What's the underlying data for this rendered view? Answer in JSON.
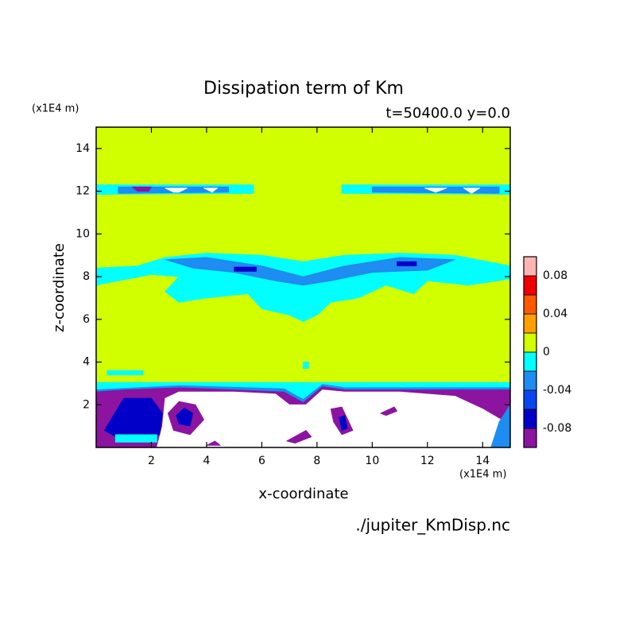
{
  "chart_data": {
    "type": "contour",
    "title": "Dissipation term of Km",
    "subtitle": "t=50400.0 y=0.0",
    "x_label": "x-coordinate",
    "y_label": "z-coordinate",
    "x_unit": "(x1E4 m)",
    "y_unit": "(x1E4 m)",
    "source": "./jupiter_KmDisp.nc",
    "xlim": [
      0,
      15
    ],
    "ylim": [
      0,
      15
    ],
    "xticks": [
      2,
      4,
      6,
      8,
      10,
      12,
      14
    ],
    "yticks": [
      2,
      4,
      6,
      8,
      10,
      12,
      14
    ],
    "levels": [
      -0.1,
      -0.08,
      -0.06,
      -0.04,
      -0.02,
      0,
      0.02,
      0.04,
      0.06,
      0.08,
      0.1
    ],
    "colors": [
      "#8c14a0",
      "#0000c8",
      "#0a46f0",
      "#1e8cf0",
      "#00ffff",
      "#d2ff00",
      "#ffa000",
      "#ff5a00",
      "#f00000",
      "#ffb4b4"
    ],
    "below_color": "#ffffff",
    "colorbar_ticks": [
      -0.08,
      -0.04,
      0,
      0.04,
      0.08
    ],
    "regions": [
      {
        "min": 0,
        "max": 0.02,
        "points": [
          [
            0,
            0
          ],
          [
            15,
            0
          ],
          [
            15,
            15
          ],
          [
            0,
            15
          ]
        ]
      },
      {
        "min": -0.02,
        "max": 0,
        "points": [
          [
            0,
            11.85
          ],
          [
            5.7,
            11.9
          ],
          [
            5.7,
            12.3
          ],
          [
            0,
            12.3
          ]
        ]
      },
      {
        "min": -0.02,
        "max": 0,
        "points": [
          [
            8.9,
            11.9
          ],
          [
            15,
            11.85
          ],
          [
            15,
            12.3
          ],
          [
            8.9,
            12.3
          ]
        ]
      },
      {
        "min": -0.04,
        "max": -0.02,
        "points": [
          [
            0.8,
            11.9
          ],
          [
            4.8,
            11.95
          ],
          [
            4.8,
            12.2
          ],
          [
            0.8,
            12.2
          ]
        ]
      },
      {
        "min": -0.04,
        "max": -0.02,
        "points": [
          [
            10,
            11.95
          ],
          [
            14.6,
            11.9
          ],
          [
            14.6,
            12.2
          ],
          [
            10,
            12.2
          ]
        ]
      },
      {
        "min": -0.1,
        "max": -0.08,
        "points": [
          [
            1.3,
            12.2
          ],
          [
            2,
            12.2
          ],
          [
            1.9,
            12.0
          ],
          [
            1.5,
            12.0
          ]
        ]
      },
      {
        "max": -0.1,
        "points": [
          [
            2.5,
            12.15
          ],
          [
            3.3,
            12.15
          ],
          [
            3,
            11.95
          ],
          [
            2.8,
            11.95
          ]
        ]
      },
      {
        "max": -0.1,
        "points": [
          [
            3.9,
            12.15
          ],
          [
            4.4,
            12.15
          ],
          [
            4.2,
            11.95
          ]
        ]
      },
      {
        "max": -0.1,
        "points": [
          [
            11.9,
            12.15
          ],
          [
            12.7,
            12.15
          ],
          [
            12.3,
            11.95
          ]
        ]
      },
      {
        "max": -0.1,
        "points": [
          [
            13.3,
            12.15
          ],
          [
            13.9,
            12.15
          ],
          [
            13.6,
            11.9
          ]
        ]
      },
      {
        "min": -0.02,
        "max": 0,
        "points": [
          [
            0,
            8.4
          ],
          [
            1.5,
            8.5
          ],
          [
            2.5,
            8.9
          ],
          [
            4,
            9.1
          ],
          [
            6,
            9
          ],
          [
            7.5,
            8.7
          ],
          [
            9,
            9
          ],
          [
            11,
            9.1
          ],
          [
            13,
            9
          ],
          [
            15,
            8.5
          ],
          [
            15,
            7.9
          ],
          [
            13.5,
            7.6
          ],
          [
            12,
            7.8
          ],
          [
            11.5,
            7.2
          ],
          [
            10.5,
            7.6
          ],
          [
            9.5,
            7.0
          ],
          [
            8.5,
            6.8
          ],
          [
            8,
            6.2
          ],
          [
            7.5,
            5.9
          ],
          [
            7,
            6.2
          ],
          [
            6,
            6.5
          ],
          [
            5.5,
            7.2
          ],
          [
            4,
            7.0
          ],
          [
            3,
            6.8
          ],
          [
            2.5,
            7.3
          ],
          [
            3,
            8
          ],
          [
            2,
            8.1
          ],
          [
            0,
            7.6
          ]
        ]
      },
      {
        "min": -0.04,
        "max": -0.02,
        "points": [
          [
            2.5,
            8.8
          ],
          [
            4,
            8.9
          ],
          [
            6,
            8.5
          ],
          [
            7.5,
            8.0
          ],
          [
            9,
            8.5
          ],
          [
            11,
            8.9
          ],
          [
            13,
            8.8
          ],
          [
            12,
            8.3
          ],
          [
            10,
            8.2
          ],
          [
            8.5,
            7.8
          ],
          [
            7.5,
            7.6
          ],
          [
            6.5,
            7.8
          ],
          [
            5,
            8.2
          ],
          [
            3.5,
            8.4
          ]
        ]
      },
      {
        "min": -0.08,
        "max": -0.06,
        "points": [
          [
            5.0,
            8.45
          ],
          [
            5.8,
            8.45
          ],
          [
            5.8,
            8.25
          ],
          [
            5.0,
            8.25
          ]
        ]
      },
      {
        "min": -0.08,
        "max": -0.06,
        "points": [
          [
            10.9,
            8.7
          ],
          [
            11.6,
            8.7
          ],
          [
            11.6,
            8.5
          ],
          [
            10.9,
            8.5
          ]
        ]
      },
      {
        "min": -0.02,
        "max": 0,
        "points": [
          [
            0.4,
            3.4
          ],
          [
            1.7,
            3.4
          ],
          [
            1.7,
            3.6
          ],
          [
            0.4,
            3.6
          ]
        ]
      },
      {
        "min": -0.02,
        "max": 0,
        "points": [
          [
            7.5,
            3.7
          ],
          [
            7.7,
            3.7
          ],
          [
            7.7,
            4.0
          ],
          [
            7.5,
            4.0
          ]
        ]
      },
      {
        "min": -0.02,
        "max": 0,
        "points": [
          [
            0,
            0
          ],
          [
            15,
            0
          ],
          [
            15,
            3.05
          ],
          [
            0,
            3.05
          ]
        ]
      },
      {
        "min": -0.04,
        "max": -0.02,
        "points": [
          [
            0,
            0
          ],
          [
            15,
            0
          ],
          [
            15,
            2.8
          ],
          [
            9,
            2.8
          ],
          [
            8.2,
            2.95
          ],
          [
            7.5,
            2.25
          ],
          [
            6.8,
            2.75
          ],
          [
            3,
            2.9
          ],
          [
            0,
            2.7
          ]
        ]
      },
      {
        "min": -0.1,
        "max": -0.08,
        "points": [
          [
            0,
            0
          ],
          [
            15,
            0
          ],
          [
            15,
            2.7
          ],
          [
            9,
            2.7
          ],
          [
            8.2,
            2.85
          ],
          [
            7.5,
            2.1
          ],
          [
            6.8,
            2.6
          ],
          [
            5,
            2.7
          ],
          [
            3,
            2.8
          ],
          [
            1,
            2.7
          ],
          [
            0,
            2.6
          ]
        ]
      },
      {
        "max": -0.1,
        "points": [
          [
            2.2,
            0
          ],
          [
            15,
            0
          ],
          [
            14.8,
            1.2
          ],
          [
            14,
            1.8
          ],
          [
            13,
            2.4
          ],
          [
            11,
            2.6
          ],
          [
            9,
            2.6
          ],
          [
            8.2,
            2.7
          ],
          [
            7.6,
            2.0
          ],
          [
            7,
            2.0
          ],
          [
            6.5,
            2.5
          ],
          [
            5,
            2.6
          ],
          [
            4,
            2.6
          ],
          [
            3,
            2.6
          ],
          [
            2.5,
            2.3
          ],
          [
            2.4,
            1.0
          ]
        ]
      },
      {
        "min": -0.08,
        "max": -0.06,
        "points": [
          [
            0.3,
            0.8
          ],
          [
            1,
            2.3
          ],
          [
            2,
            2.3
          ],
          [
            2.4,
            1.6
          ],
          [
            2.3,
            0.6
          ],
          [
            1.5,
            0.6
          ],
          [
            1,
            0.3
          ]
        ]
      },
      {
        "min": -0.02,
        "max": 0,
        "points": [
          [
            0.7,
            0.25
          ],
          [
            2.2,
            0.25
          ],
          [
            2.2,
            0.6
          ],
          [
            0.7,
            0.6
          ]
        ]
      },
      {
        "min": -0.04,
        "max": -0.02,
        "points": [
          [
            14.3,
            0
          ],
          [
            15,
            0
          ],
          [
            15,
            2.0
          ],
          [
            14.6,
            1.2
          ]
        ]
      },
      {
        "min": -0.1,
        "max": -0.08,
        "points": [
          [
            2.6,
            1.6
          ],
          [
            3.0,
            2.15
          ],
          [
            3.6,
            2.0
          ],
          [
            3.9,
            1.3
          ],
          [
            3.4,
            0.6
          ],
          [
            2.8,
            0.8
          ]
        ]
      },
      {
        "min": -0.08,
        "max": -0.06,
        "points": [
          [
            2.9,
            1.5
          ],
          [
            3.2,
            1.85
          ],
          [
            3.5,
            1.6
          ],
          [
            3.4,
            1.0
          ],
          [
            3.0,
            1.1
          ]
        ]
      },
      {
        "min": -0.1,
        "max": -0.08,
        "points": [
          [
            6.9,
            0.3
          ],
          [
            7.6,
            0.8
          ],
          [
            7.8,
            0.5
          ],
          [
            7.2,
            0.2
          ]
        ]
      },
      {
        "min": -0.1,
        "max": -0.08,
        "points": [
          [
            8.5,
            1.8
          ],
          [
            8.9,
            1.9
          ],
          [
            9.3,
            0.8
          ],
          [
            8.9,
            0.6
          ],
          [
            8.6,
            1.2
          ]
        ]
      },
      {
        "min": -0.08,
        "max": -0.06,
        "points": [
          [
            8.8,
            1.4
          ],
          [
            9.0,
            1.5
          ],
          [
            9.1,
            0.9
          ],
          [
            8.9,
            0.8
          ]
        ]
      },
      {
        "min": -0.1,
        "max": -0.08,
        "points": [
          [
            10.3,
            1.6
          ],
          [
            10.8,
            1.9
          ],
          [
            10.9,
            1.7
          ],
          [
            10.5,
            1.5
          ]
        ]
      },
      {
        "min": -0.1,
        "max": -0.08,
        "points": [
          [
            4.0,
            0.1
          ],
          [
            4.3,
            0.3
          ],
          [
            4.5,
            0.1
          ]
        ]
      }
    ]
  }
}
